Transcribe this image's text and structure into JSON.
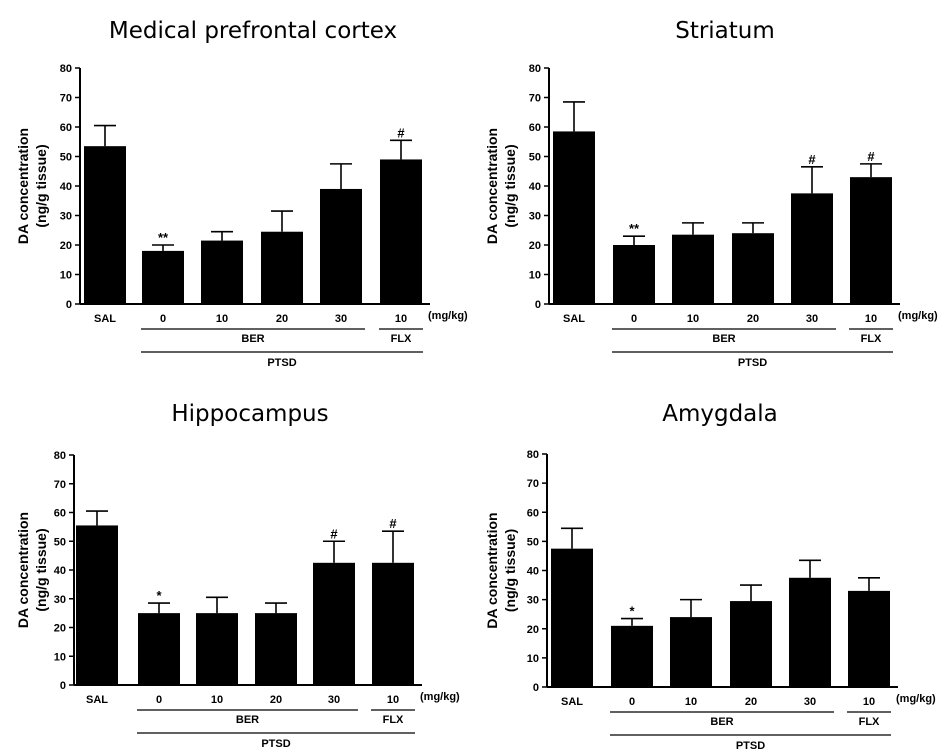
{
  "common": {
    "ylabel_line1": "DA concentration",
    "ylabel_line2": "(ng/g tissue)",
    "unit_label": "(mg/kg)",
    "group_ber": "BER",
    "group_flx": "FLX",
    "group_ptsd": "PTSD",
    "colors": {
      "bar": "#000000",
      "background": "#ffffff"
    }
  },
  "chart_data": [
    {
      "type": "bar",
      "title": "Medical prefrontal cortex",
      "categories": [
        "SAL",
        "0",
        "10",
        "20",
        "30",
        "10"
      ],
      "values": [
        53.5,
        18,
        21.5,
        24.5,
        39,
        49
      ],
      "errors": [
        7,
        2,
        3,
        7,
        8.5,
        6.5
      ],
      "annotations": [
        "",
        "**",
        "",
        "",
        "",
        "#"
      ],
      "yticks": [
        0,
        10,
        20,
        30,
        40,
        50,
        60,
        70,
        80
      ],
      "ylim": [
        0,
        80
      ]
    },
    {
      "type": "bar",
      "title": "Striatum",
      "categories": [
        "SAL",
        "0",
        "10",
        "20",
        "30",
        "10"
      ],
      "values": [
        58.5,
        20,
        23.5,
        24,
        37.5,
        43
      ],
      "errors": [
        10,
        3,
        4,
        3.5,
        9,
        4.5
      ],
      "annotations": [
        "",
        "**",
        "",
        "",
        "#",
        "#"
      ],
      "yticks": [
        0,
        10,
        20,
        30,
        40,
        50,
        60,
        70,
        80
      ],
      "ylim": [
        0,
        80
      ]
    },
    {
      "type": "bar",
      "title": "Hippocampus",
      "categories": [
        "SAL",
        "0",
        "10",
        "20",
        "30",
        "10"
      ],
      "values": [
        55.5,
        25,
        25,
        25,
        42.5,
        42.5
      ],
      "errors": [
        5,
        3.5,
        5.5,
        3.5,
        7.5,
        11
      ],
      "annotations": [
        "",
        "*",
        "",
        "",
        "#",
        "#"
      ],
      "yticks": [
        0,
        10,
        20,
        30,
        40,
        50,
        60,
        70,
        80
      ],
      "ylim": [
        0,
        80
      ]
    },
    {
      "type": "bar",
      "title": "Amygdala",
      "categories": [
        "SAL",
        "0",
        "10",
        "20",
        "30",
        "10"
      ],
      "values": [
        47.5,
        21,
        24,
        29.5,
        37.5,
        33
      ],
      "errors": [
        7,
        2.5,
        6,
        5.5,
        6,
        4.5
      ],
      "annotations": [
        "",
        "*",
        "",
        "",
        "",
        ""
      ],
      "yticks": [
        0,
        10,
        20,
        30,
        40,
        50,
        60,
        70,
        80
      ],
      "ylim": [
        0,
        80
      ]
    }
  ]
}
